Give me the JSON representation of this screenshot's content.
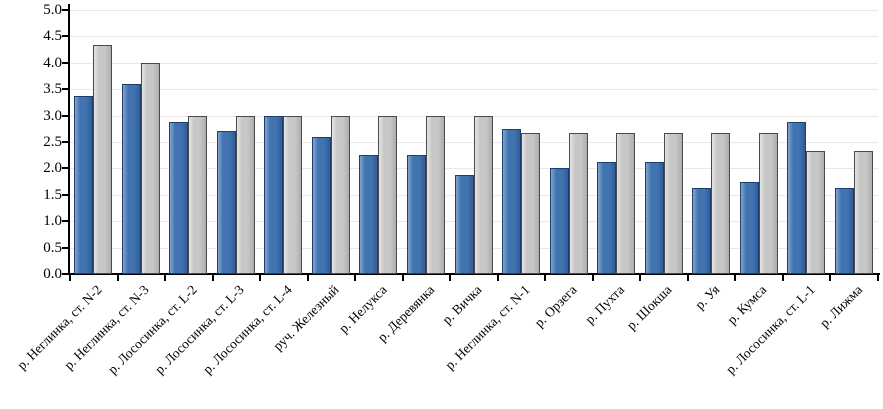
{
  "chart_data": {
    "type": "bar",
    "title": "",
    "xlabel": "",
    "ylabel": "",
    "ylim": [
      0,
      5
    ],
    "ytick_step": 0.5,
    "yticks": [
      "0.0",
      "0.5",
      "1.0",
      "1.5",
      "2.0",
      "2.5",
      "3.0",
      "3.5",
      "4.0",
      "4.5",
      "5.0"
    ],
    "grid": "horizontal, every 0.5, light gray",
    "legend_position": "none",
    "categories": [
      "р. Неглинка, ст. N-2",
      "р. Неглинка, ст. N-3",
      "р. Лососинка, ст. L-2",
      "р. Лососинка, ст. L-3",
      "р. Лососинка, ст. L-4",
      "руч. Железный",
      "р. Нелукса",
      "р. Деревянка",
      "р. Вичка",
      "р. Неглинка, ст. N-1",
      "р. Орзега",
      "р. Пухта",
      "р. Шокша",
      "р. Уя",
      "р. Кумса",
      "р. Лососинка, ст. L-1",
      "р. Лижма"
    ],
    "series": [
      {
        "name": "series-1-blue",
        "color": "#4273B1",
        "color_light": "#83A5CF",
        "color_dark": "#305C99",
        "color_border": "#1E3E6E",
        "values": [
          3.37,
          3.6,
          2.87,
          2.7,
          3.0,
          2.6,
          2.25,
          2.25,
          1.87,
          2.75,
          2.0,
          2.12,
          2.12,
          1.62,
          1.75,
          2.87,
          1.62
        ]
      },
      {
        "name": "series-2-gray",
        "color": "#C7C7C7",
        "color_light": "#E4E4E4",
        "color_dark": "#ADADAD",
        "color_border": "#4A4A4A",
        "values": [
          4.33,
          4.0,
          3.0,
          3.0,
          3.0,
          3.0,
          3.0,
          3.0,
          3.0,
          2.67,
          2.67,
          2.67,
          2.67,
          2.67,
          2.67,
          2.33,
          2.33
        ]
      }
    ]
  }
}
